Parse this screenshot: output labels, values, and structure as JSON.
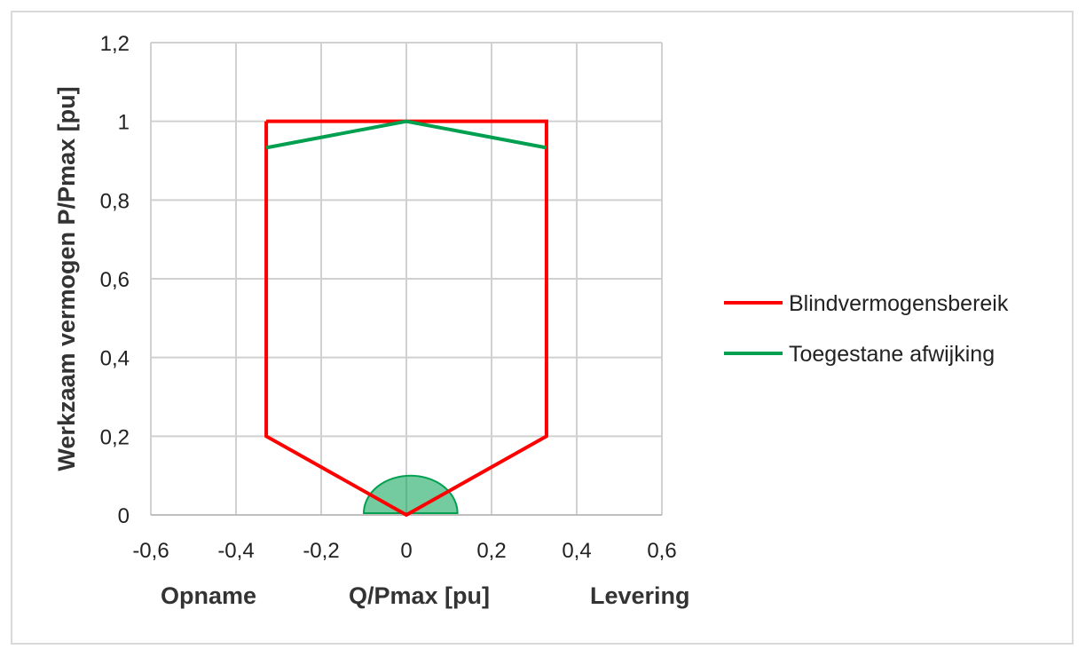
{
  "chart_data": {
    "type": "line",
    "ylabel": "Werkzaam vermogen P/Pmax [pu]",
    "xlabel": "Q/Pmax [pu]",
    "x_annotations": {
      "left": "Opname",
      "right": "Levering"
    },
    "xlim": [
      -0.6,
      0.6
    ],
    "ylim": [
      0,
      1.2
    ],
    "x_ticks": [
      -0.6,
      -0.4,
      -0.2,
      0,
      0.2,
      0.4,
      0.6
    ],
    "x_tick_labels": [
      "-0,6",
      "-0,4",
      "-0,2",
      "0",
      "0,2",
      "0,4",
      "0,6"
    ],
    "y_ticks": [
      0,
      0.2,
      0.4,
      0.6,
      0.8,
      1.0,
      1.2
    ],
    "y_tick_labels": [
      "0",
      "0,2",
      "0,4",
      "0,6",
      "0,8",
      "1",
      "1,2"
    ],
    "grid": true,
    "legend_position": "right",
    "series": [
      {
        "name": "Blindvermogensbereik",
        "color": "#ff0000",
        "x": [
          -0.329,
          -0.329,
          0,
          0.329,
          0.329,
          -0.329
        ],
        "y": [
          1.0,
          0.2,
          0,
          0.2,
          1.0,
          1.0
        ]
      },
      {
        "name": "Toegestane afwijking",
        "color": "#00a050",
        "x": [
          -0.329,
          0,
          0.329
        ],
        "y": [
          0.933,
          1.0,
          0.933
        ]
      }
    ],
    "tolerance_region": {
      "color": "#00a050",
      "fill_opacity": 0.55,
      "center": [
        0.01,
        0
      ],
      "radius_x": 0.11,
      "radius_y": 0.1
    }
  }
}
